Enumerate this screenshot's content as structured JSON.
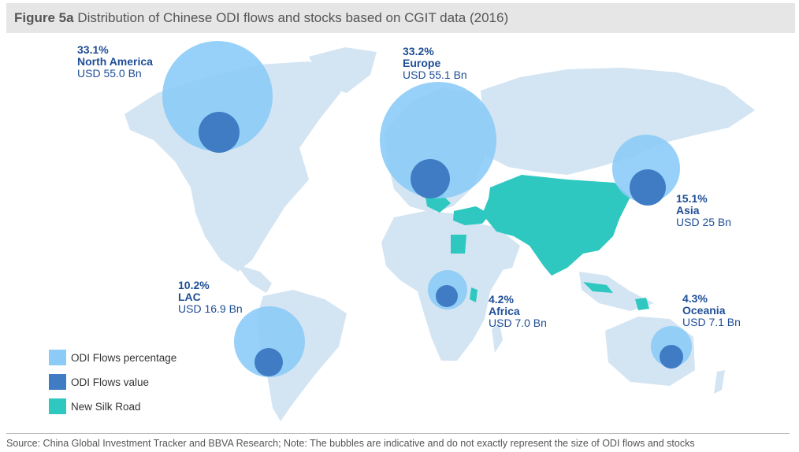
{
  "figure": {
    "number": "Figure 5a",
    "title": "Distribution of Chinese ODI flows and stocks based on CGIT data (2016)"
  },
  "colors": {
    "land": "#d3e4f3",
    "flows_percentage": "#8ccbf7",
    "flows_value": "#3f7cc4",
    "new_silk_road": "#2ec8c0",
    "label_text": "#1f4e96"
  },
  "regions": [
    {
      "id": "north-america",
      "percentage": "33.1%",
      "name": "North America",
      "value_text": "USD 55.0 Bn"
    },
    {
      "id": "europe",
      "percentage": "33.2%",
      "name": "Europe",
      "value_text": "USD 55.1 Bn"
    },
    {
      "id": "asia",
      "percentage": "15.1%",
      "name": "Asia",
      "value_text": "USD 25 Bn"
    },
    {
      "id": "lac",
      "percentage": "10.2%",
      "name": "LAC",
      "value_text": "USD 16.9 Bn"
    },
    {
      "id": "africa",
      "percentage": "4.2%",
      "name": "Africa",
      "value_text": "USD 7.0 Bn"
    },
    {
      "id": "oceania",
      "percentage": "4.3%",
      "name": "Oceania",
      "value_text": "USD 7.1 Bn"
    }
  ],
  "legend": [
    {
      "label": "ODI Flows percentage",
      "color": "#8ccbf7"
    },
    {
      "label": "ODI Flows value",
      "color": "#3f7cc4"
    },
    {
      "label": "New Silk Road",
      "color": "#2ec8c0"
    }
  ],
  "source_note": "Source: China Global Investment Tracker and BBVA Research; Note: The bubbles are indicative and do not exactly represent the size of ODI flows and stocks"
}
